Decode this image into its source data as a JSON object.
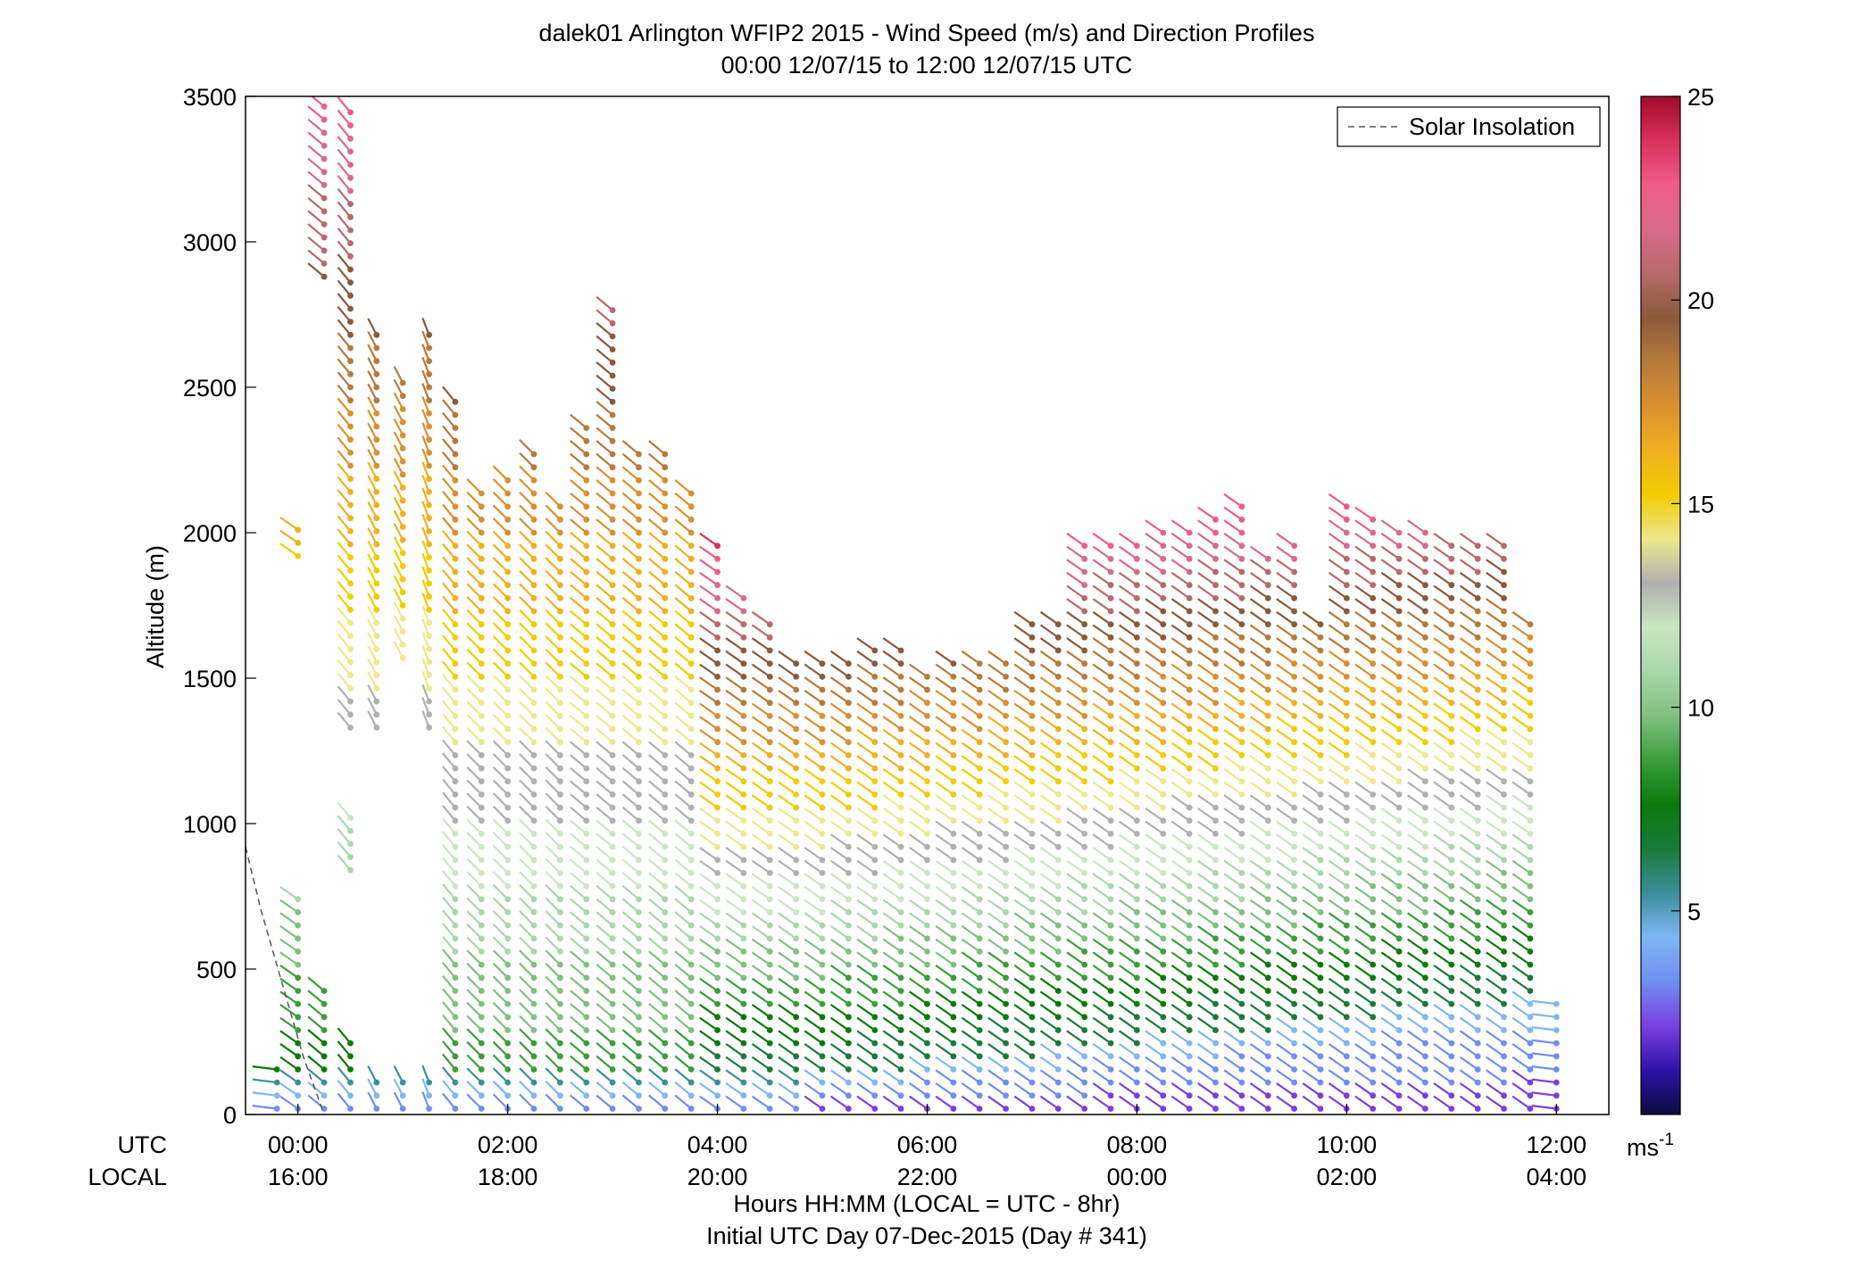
{
  "chart_data": {
    "type": "wind_barb_profile",
    "title": "dalek01 Arlington WFIP2 2015 - Wind Speed (m/s) and Direction Profiles",
    "subtitle": "00:00 12/07/15 to 12:00 12/07/15  UTC",
    "xlabel": "Hours HH:MM  (LOCAL = UTC - 8hr)",
    "xlabel2": "Initial UTC Day 07-Dec-2015 (Day # 341)",
    "ylabel": "Altitude (m)",
    "row_label_utc": "UTC",
    "row_label_local": "LOCAL",
    "xlim_hours": [
      -0.5,
      12.5
    ],
    "ylim": [
      0,
      3500
    ],
    "y_ticks": [
      "0",
      "500",
      "1000",
      "1500",
      "2000",
      "2500",
      "3000",
      "3500"
    ],
    "x_ticks_utc": [
      "00:00",
      "02:00",
      "04:00",
      "06:00",
      "08:00",
      "10:00",
      "12:00"
    ],
    "x_ticks_local": [
      "16:00",
      "18:00",
      "20:00",
      "22:00",
      "00:00",
      "02:00",
      "04:00"
    ],
    "legend": "Solar Insolation",
    "colorbar": {
      "min": 0,
      "max": 25,
      "ticks": [
        "5",
        "10",
        "15",
        "20",
        "25"
      ],
      "unit": "ms-1",
      "stops": [
        "#0b0b3e",
        "#2f12a8",
        "#7a3fe0",
        "#6f8ef0",
        "#7fb6f5",
        "#3c8f9a",
        "#1b7a3a",
        "#0b7a0b",
        "#3b9d3b",
        "#7fc07f",
        "#a8d7a8",
        "#c9e6c0",
        "#b0b0b0",
        "#eee78c",
        "#f2cc00",
        "#f0b020",
        "#d89030",
        "#b87a3a",
        "#8a5a3a",
        "#b86a6a",
        "#d86a8a",
        "#ef5c87",
        "#d8305a",
        "#a10a2a"
      ]
    },
    "solar_insolation": [
      {
        "x": -0.5,
        "y": 920
      },
      {
        "x": -0.35,
        "y": 700
      },
      {
        "x": -0.15,
        "y": 450
      },
      {
        "x": 0.05,
        "y": 200
      },
      {
        "x": 0.25,
        "y": 0
      }
    ],
    "profiles": [
      {
        "t": -0.2,
        "top": 190,
        "dir": 260
      },
      {
        "t": 0.0,
        "top": 760,
        "dir": 225,
        "extra": [
          {
            "y0": 1920,
            "y1": 2050
          }
        ]
      },
      {
        "t": 0.25,
        "top": 460,
        "dir": 220,
        "extra": [
          {
            "y0": 2880,
            "y1": 3480
          }
        ]
      },
      {
        "t": 0.5,
        "top": 280,
        "dir": 210,
        "extra": [
          {
            "y0": 840,
            "y1": 1060
          },
          {
            "y0": 1330,
            "y1": 3470
          }
        ]
      },
      {
        "t": 0.75,
        "top": 120,
        "dir": 200,
        "extra": [
          {
            "y0": 1330,
            "y1": 2690
          }
        ]
      },
      {
        "t": 1.0,
        "top": 110,
        "dir": 200,
        "extra": [
          {
            "y0": 1570,
            "y1": 2550
          }
        ]
      },
      {
        "t": 1.25,
        "top": 110,
        "dir": 195,
        "extra": [
          {
            "y0": 1330,
            "y1": 2690
          }
        ]
      },
      {
        "t": 1.5,
        "top": 2450,
        "dir": 210
      },
      {
        "t": 1.75,
        "top": 2140,
        "dir": 215
      },
      {
        "t": 2.0,
        "top": 2180,
        "dir": 215
      },
      {
        "t": 2.25,
        "top": 2310,
        "dir": 215
      },
      {
        "t": 2.5,
        "top": 2130,
        "dir": 215
      },
      {
        "t": 2.75,
        "top": 2400,
        "dir": 220
      },
      {
        "t": 3.0,
        "top": 2790,
        "dir": 220
      },
      {
        "t": 3.25,
        "top": 2310,
        "dir": 220
      },
      {
        "t": 3.5,
        "top": 2310,
        "dir": 220
      },
      {
        "t": 3.75,
        "top": 2150,
        "dir": 220
      },
      {
        "t": 4.0,
        "top": 1960,
        "dir": 225
      },
      {
        "t": 4.25,
        "top": 1780,
        "dir": 225
      },
      {
        "t": 4.5,
        "top": 1690,
        "dir": 225
      },
      {
        "t": 4.75,
        "top": 1580,
        "dir": 225
      },
      {
        "t": 5.0,
        "top": 1580,
        "dir": 225
      },
      {
        "t": 5.25,
        "top": 1580,
        "dir": 225
      },
      {
        "t": 5.5,
        "top": 1620,
        "dir": 225
      },
      {
        "t": 5.75,
        "top": 1620,
        "dir": 225
      },
      {
        "t": 6.0,
        "top": 1530,
        "dir": 225
      },
      {
        "t": 6.25,
        "top": 1580,
        "dir": 225
      },
      {
        "t": 6.5,
        "top": 1580,
        "dir": 225
      },
      {
        "t": 6.75,
        "top": 1580,
        "dir": 225
      },
      {
        "t": 7.0,
        "top": 1690,
        "dir": 225
      },
      {
        "t": 7.25,
        "top": 1690,
        "dir": 225
      },
      {
        "t": 7.5,
        "top": 1970,
        "dir": 225
      },
      {
        "t": 7.75,
        "top": 1970,
        "dir": 225
      },
      {
        "t": 8.0,
        "top": 1970,
        "dir": 225
      },
      {
        "t": 8.25,
        "top": 2010,
        "dir": 225
      },
      {
        "t": 8.5,
        "top": 2010,
        "dir": 225
      },
      {
        "t": 8.75,
        "top": 2050,
        "dir": 225
      },
      {
        "t": 9.0,
        "top": 2090,
        "dir": 225
      },
      {
        "t": 9.25,
        "top": 1930,
        "dir": 225
      },
      {
        "t": 9.5,
        "top": 1970,
        "dir": 225
      },
      {
        "t": 9.75,
        "top": 1700,
        "dir": 225
      },
      {
        "t": 10.0,
        "top": 2130,
        "dir": 225
      },
      {
        "t": 10.25,
        "top": 2050,
        "dir": 225
      },
      {
        "t": 10.5,
        "top": 2010,
        "dir": 225
      },
      {
        "t": 10.75,
        "top": 2010,
        "dir": 225
      },
      {
        "t": 11.0,
        "top": 1970,
        "dir": 225
      },
      {
        "t": 11.25,
        "top": 1970,
        "dir": 225
      },
      {
        "t": 11.5,
        "top": 1970,
        "dir": 225
      },
      {
        "t": 11.75,
        "top": 1700,
        "dir": 225
      },
      {
        "t": 12.0,
        "top": 420,
        "dir": 260
      }
    ],
    "grid": false,
    "legend_position": "top-right"
  }
}
